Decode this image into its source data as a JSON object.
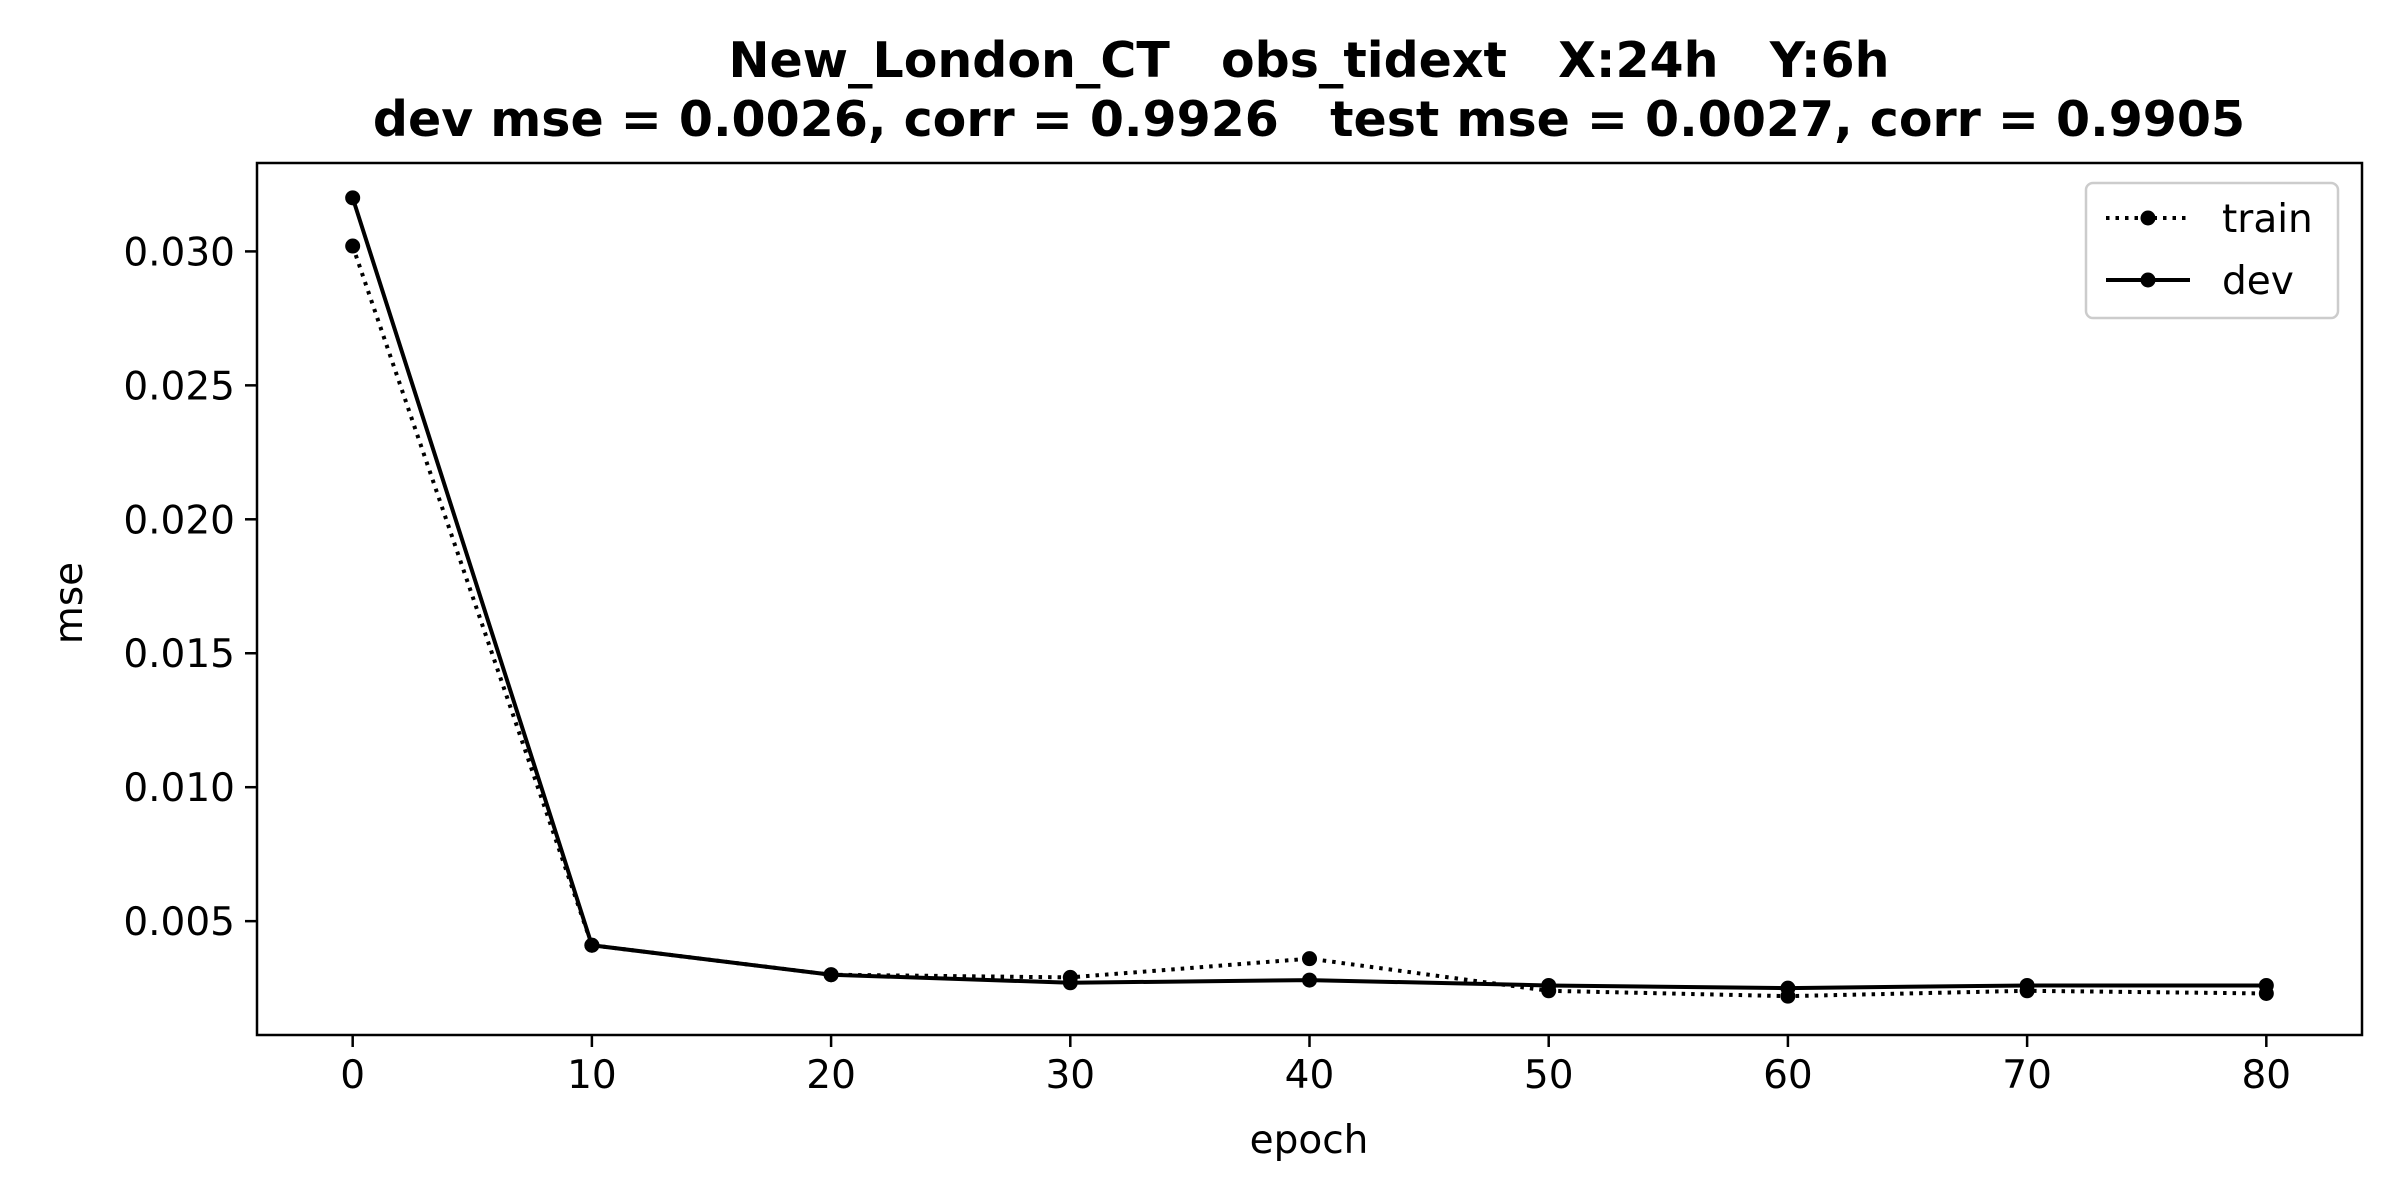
{
  "chart_data": {
    "type": "line",
    "title": "New_London_CT   obs_tidext   X:24h   Y:6h",
    "subtitle": "dev mse = 0.0026, corr = 0.9926   test mse = 0.0027, corr = 0.9905",
    "xlabel": "epoch",
    "ylabel": "mse",
    "x": [
      0,
      10,
      20,
      30,
      40,
      50,
      60,
      70,
      80
    ],
    "xlim": [
      -4,
      84
    ],
    "ylim": [
      0.00075,
      0.0333
    ],
    "xticks": [
      0,
      10,
      20,
      30,
      40,
      50,
      60,
      70,
      80
    ],
    "xtick_labels": [
      "0",
      "10",
      "20",
      "30",
      "40",
      "50",
      "60",
      "70",
      "80"
    ],
    "yticks": [
      0.005,
      0.01,
      0.015,
      0.02,
      0.025,
      0.03
    ],
    "ytick_labels": [
      "0.005",
      "0.010",
      "0.015",
      "0.020",
      "0.025",
      "0.030"
    ],
    "grid": false,
    "legend_position": "top-right",
    "series": [
      {
        "name": "train",
        "style": "dotted",
        "color": "#000000",
        "values": [
          0.0302,
          0.0041,
          0.003,
          0.0029,
          0.0036,
          0.0024,
          0.0022,
          0.0024,
          0.0023
        ]
      },
      {
        "name": "dev",
        "style": "solid",
        "color": "#000000",
        "values": [
          0.032,
          0.0041,
          0.003,
          0.0027,
          0.0028,
          0.0026,
          0.0025,
          0.0026,
          0.0026
        ]
      }
    ]
  }
}
